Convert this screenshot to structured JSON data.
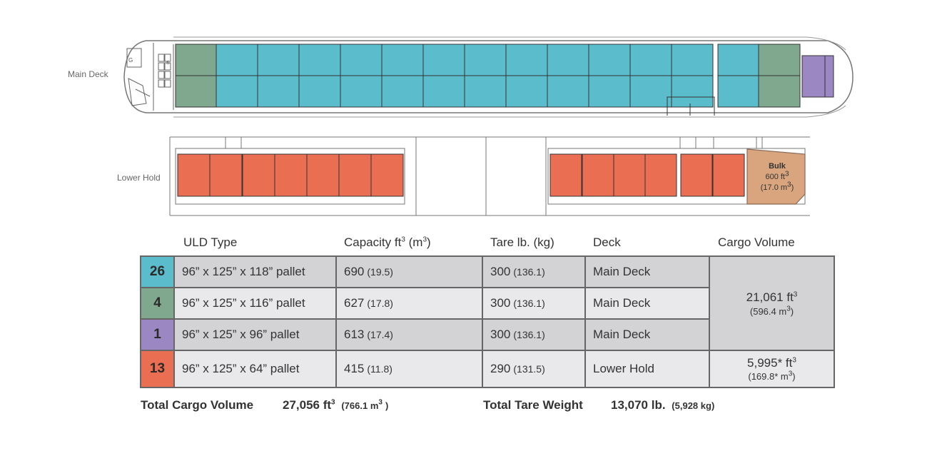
{
  "labels": {
    "main_deck": "Main Deck",
    "lower_hold": "Lower Hold"
  },
  "bulk": {
    "title": "Bulk",
    "volume_ft": "600 ft",
    "volume_m": "(17.0 m",
    "volume_m_close": ")"
  },
  "table": {
    "headers": {
      "uld_type": "ULD Type",
      "capacity": "Capacity ft",
      "capacity_unit": "(m",
      "capacity_unit_close": ")",
      "tare": "Tare lb. (kg)",
      "deck": "Deck",
      "cargo_volume": "Cargo Volume"
    },
    "rows": [
      {
        "count": "26",
        "color": "#5bbccb",
        "uld": "96” x 125” x 118” pallet",
        "cap": "690",
        "cap_m": "(19.5)",
        "tare": "300",
        "tare_kg": "(136.1)",
        "deck": "Main Deck"
      },
      {
        "count": "4",
        "color": "#7fa88f",
        "uld": "96” x 125” x 116” pallet",
        "cap": "627",
        "cap_m": "(17.8)",
        "tare": "300",
        "tare_kg": "(136.1)",
        "deck": "Main Deck"
      },
      {
        "count": "1",
        "color": "#9b87c1",
        "uld": "96” x 125” x 96” pallet",
        "cap": "613",
        "cap_m": "(17.4)",
        "tare": "300",
        "tare_kg": "(136.1)",
        "deck": "Main Deck"
      },
      {
        "count": "13",
        "color": "#ea6e52",
        "uld": "96” x 125” x 64” pallet",
        "cap": "415",
        "cap_m": "(11.8)",
        "tare": "290",
        "tare_kg": "(131.5)",
        "deck": "Lower Hold"
      }
    ],
    "main_volume": {
      "ft": "21,061 ft",
      "m": "(596.4 m",
      "m_close": ")"
    },
    "lower_volume": {
      "ft": "5,995* ft",
      "m": "(169.8* m",
      "m_close": ")"
    }
  },
  "totals": {
    "cargo_label": "Total Cargo Volume",
    "cargo_value": "27,056 ft",
    "cargo_m": "(766.1 m",
    "cargo_m_close": ")",
    "tare_label": "Total Tare Weight",
    "tare_value": "13,070 lb.",
    "tare_kg": "(5,928 kg)"
  },
  "colors": {
    "main_pallet": "#5bbccb",
    "main_pallet_end": "#7fa88f",
    "main_pallet_small": "#9b87c1",
    "lower_pallet": "#ea6e52",
    "bulk": "#d9a57e",
    "row_dark": "#d3d3d5",
    "row_light": "#e9e9eb",
    "border": "#666666"
  }
}
